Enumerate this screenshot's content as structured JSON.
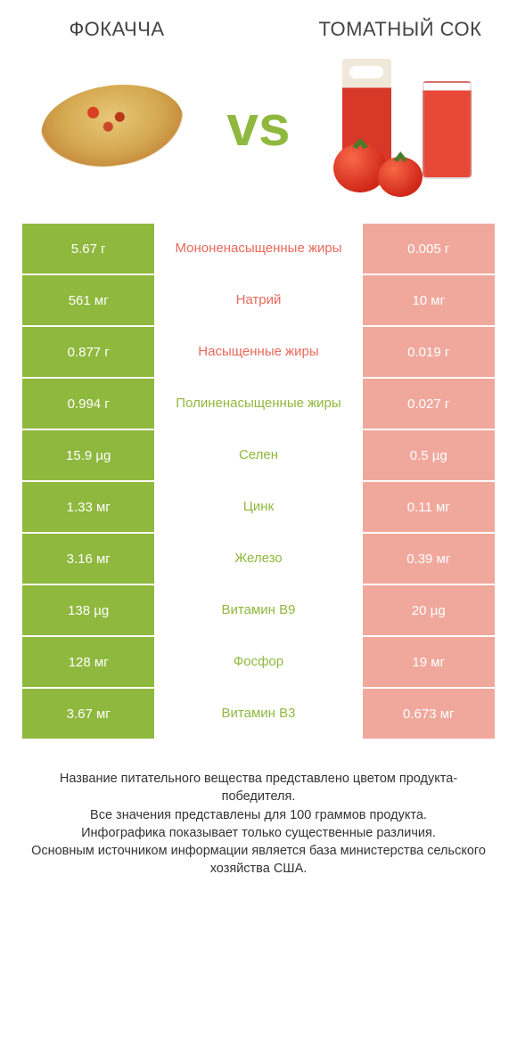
{
  "products": {
    "left": {
      "title": "ФОКАЧЧА"
    },
    "right": {
      "title": "ТОМАТНЫЙ СОК"
    }
  },
  "vs_label": "vs",
  "colors": {
    "green_winner": "#8fb83e",
    "green_loser": "#c3d78f",
    "red_winner": "#e9695a",
    "red_loser": "#f0a89d",
    "label_green": "#8fb83e",
    "label_red": "#e9695a"
  },
  "rows": [
    {
      "left_val": "5.67 г",
      "label": "Мононенасыщенные жиры",
      "right_val": "0.005 г",
      "winner": "left",
      "label_color": "red"
    },
    {
      "left_val": "561 мг",
      "label": "Натрий",
      "right_val": "10 мг",
      "winner": "left",
      "label_color": "red"
    },
    {
      "left_val": "0.877 г",
      "label": "Насыщенные жиры",
      "right_val": "0.019 г",
      "winner": "left",
      "label_color": "red"
    },
    {
      "left_val": "0.994 г",
      "label": "Полиненасыщенные жиры",
      "right_val": "0.027 г",
      "winner": "left",
      "label_color": "green"
    },
    {
      "left_val": "15.9 µg",
      "label": "Селен",
      "right_val": "0.5 µg",
      "winner": "left",
      "label_color": "green"
    },
    {
      "left_val": "1.33 мг",
      "label": "Цинк",
      "right_val": "0.11 мг",
      "winner": "left",
      "label_color": "green"
    },
    {
      "left_val": "3.16 мг",
      "label": "Железо",
      "right_val": "0.39 мг",
      "winner": "left",
      "label_color": "green"
    },
    {
      "left_val": "138 µg",
      "label": "Витамин B9",
      "right_val": "20 µg",
      "winner": "left",
      "label_color": "green"
    },
    {
      "left_val": "128 мг",
      "label": "Фосфор",
      "right_val": "19 мг",
      "winner": "left",
      "label_color": "green"
    },
    {
      "left_val": "3.67 мг",
      "label": "Витамин B3",
      "right_val": "0.673 мг",
      "winner": "left",
      "label_color": "green"
    }
  ],
  "footer_lines": [
    "Название питательного вещества представлено цветом продукта-победителя.",
    "Все значения представлены для 100 граммов продукта.",
    "Инфографика показывает только существенные различия.",
    "Основным источником информации является база министерства сельского хозяйства США."
  ]
}
